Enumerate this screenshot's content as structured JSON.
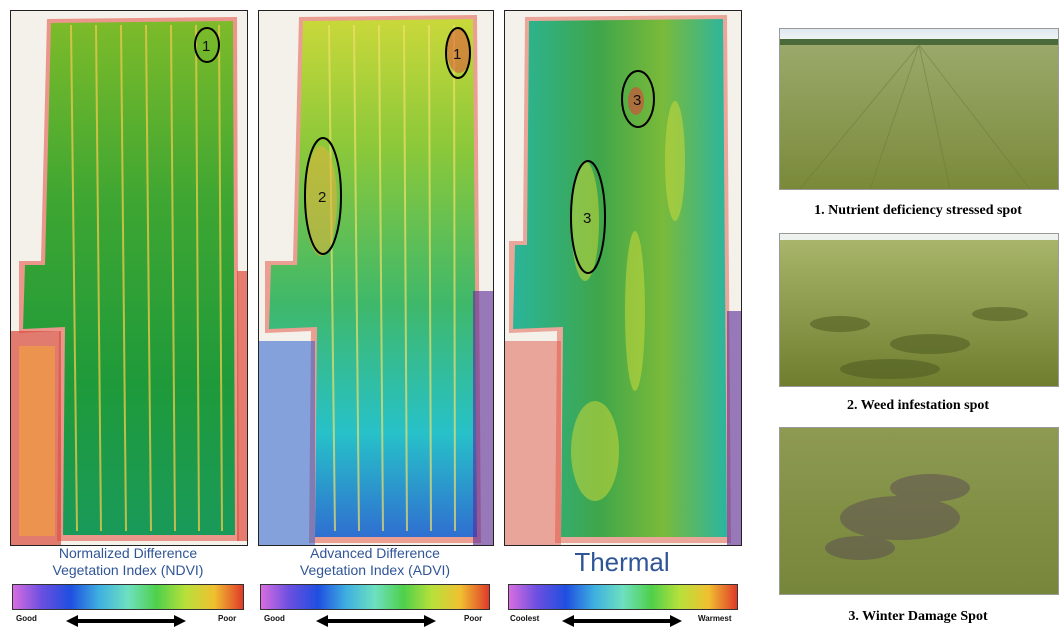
{
  "panels": [
    {
      "id": "ndvi",
      "caption_line1": "Normalized Difference",
      "caption_line2": "Vegetation Index (NDVI)",
      "scale_left": "Good",
      "scale_right": "Poor",
      "markers": [
        "1"
      ]
    },
    {
      "id": "advi",
      "caption_line1": "Advanced Difference",
      "caption_line2": "Vegetation Index (ADVI)",
      "scale_left": "Good",
      "scale_right": "Poor",
      "markers": [
        "1",
        "2"
      ]
    },
    {
      "id": "thermal",
      "caption": "Thermal",
      "scale_left": "Coolest",
      "scale_right": "Warmest",
      "markers": [
        "3",
        "3"
      ]
    }
  ],
  "photos": [
    {
      "caption": "1. Nutrient deficiency stressed spot"
    },
    {
      "caption": "2. Weed infestation spot"
    },
    {
      "caption": "3. Winter Damage Spot"
    }
  ],
  "colors": {
    "caption_blue": "#2f5597",
    "ndvi_green": "#1f9a3a",
    "advi_cyan": "#27c1c9",
    "thermal_teal": "#2ab59a",
    "stress_red": "#e0433a",
    "grass": "#8a9a4a"
  }
}
